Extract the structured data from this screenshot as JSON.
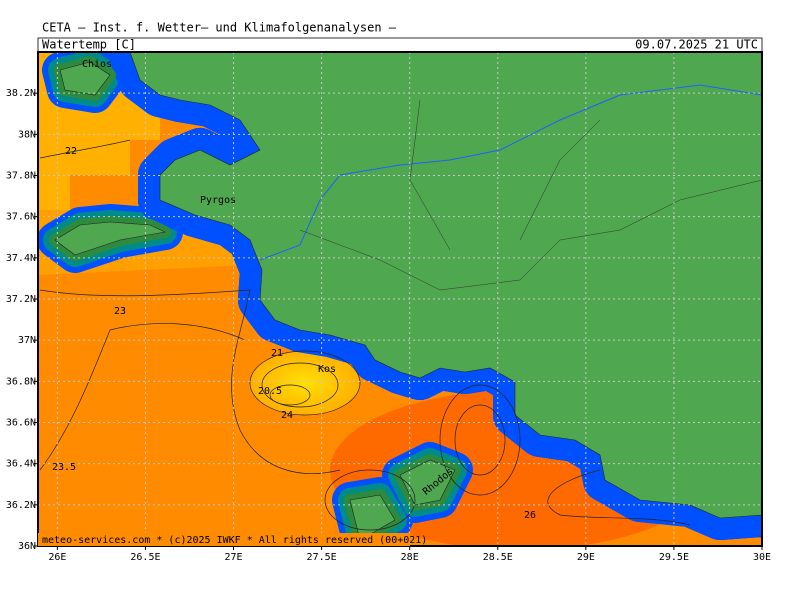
{
  "header": {
    "title": "CETA — Inst. f. Wetter— und Klimafolgenanalysen —",
    "variable": "Watertemp [C]",
    "datetime": "09.07.2025 21 UTC"
  },
  "map": {
    "lon_lim": [
      25.89,
      30
    ],
    "lat_lim": [
      36,
      38.4
    ],
    "grid": true,
    "lon_ticks": [
      {
        "value": 26,
        "label": "26E"
      },
      {
        "value": 26.5,
        "label": "26.5E"
      },
      {
        "value": 27,
        "label": "27E"
      },
      {
        "value": 27.5,
        "label": "27.5E"
      },
      {
        "value": 28,
        "label": "28E"
      },
      {
        "value": 28.5,
        "label": "28.5E"
      },
      {
        "value": 29,
        "label": "29E"
      },
      {
        "value": 29.5,
        "label": "29.5E"
      },
      {
        "value": 30,
        "label": "30E"
      }
    ],
    "lat_ticks": [
      {
        "value": 36,
        "label": "36N"
      },
      {
        "value": 36.2,
        "label": "36.2N"
      },
      {
        "value": 36.4,
        "label": "36.4N"
      },
      {
        "value": 36.6,
        "label": "36.6N"
      },
      {
        "value": 36.8,
        "label": "36.8N"
      },
      {
        "value": 37,
        "label": "37N"
      },
      {
        "value": 37.2,
        "label": "37.2N"
      },
      {
        "value": 37.4,
        "label": "37.4N"
      },
      {
        "value": 37.6,
        "label": "37.6N"
      },
      {
        "value": 37.8,
        "label": "37.8N"
      },
      {
        "value": 38,
        "label": "38N"
      },
      {
        "value": 38.2,
        "label": "38.2N"
      }
    ]
  },
  "places": [
    "Chios",
    "Pyrgos",
    "Kos",
    "Rhodos"
  ],
  "contour_labels": [
    22,
    23,
    23.5,
    21,
    20.5,
    24,
    26
  ],
  "footer": "meteo-services.com * (c)2025 IWKF * All rights reserved (00+021)"
}
